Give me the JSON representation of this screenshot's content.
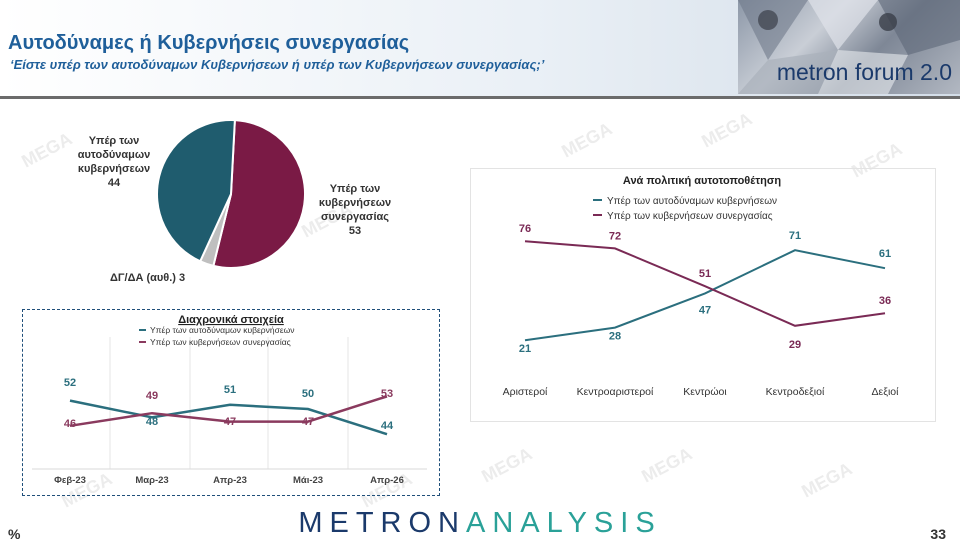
{
  "header": {
    "title": "Αυτοδύναμες ή Κυβερνήσεις συνεργασίας",
    "subtitle": "‘Είστε υπέρ των αυτοδύναμων Κυβερνήσεων ή υπέρ των Κυβερνήσεων συνεργασίας;’",
    "logo_text": "metron forum 2.0"
  },
  "pie": {
    "slices": [
      {
        "label_lines": [
          "Υπέρ των",
          "αυτοδύναμων",
          "κυβερνήσεων"
        ],
        "value": 44,
        "color": "#1f5c6e"
      },
      {
        "label_lines": [
          "Υπέρ των",
          "κυβερνήσεων",
          "συνεργασίας"
        ],
        "value": 53,
        "color": "#7a1a45"
      },
      {
        "label_text": "ΔΓ/ΔΑ (αυθ.) 3",
        "value": 3,
        "color": "#bfbfbf"
      }
    ]
  },
  "chart_data": [
    {
      "type": "pie",
      "categories": [
        "Υπέρ των αυτοδύναμων κυβερνήσεων",
        "Υπέρ των κυβερνήσεων συνεργασίας",
        "ΔΓ/ΔΑ (αυθ.)"
      ],
      "values": [
        44,
        53,
        3
      ]
    },
    {
      "type": "line",
      "title": "Διαχρονικά στοιχεία",
      "categories": [
        "Φεβ-23",
        "Μαρ-23",
        "Απρ-23",
        "Μάι-23",
        "Απρ-26"
      ],
      "series": [
        {
          "name": "Υπέρ των αυτοδύναμων κυβερνήσεων",
          "values": [
            52,
            48,
            51,
            50,
            44
          ],
          "color": "#2b6f7e"
        },
        {
          "name": "Υπέρ των κυβερνήσεων συνεργασίας",
          "values": [
            46,
            49,
            47,
            47,
            53
          ],
          "color": "#8a3a5e"
        }
      ]
    },
    {
      "type": "line",
      "title": "Ανά πολιτική αυτοτοποθέτηση",
      "categories": [
        "Αριστεροί",
        "Κεντροαριστεροί",
        "Κεντρώοι",
        "Κεντροδεξιοί",
        "Δεξιοί"
      ],
      "series": [
        {
          "name": "Υπέρ των αυτοδύναμων κυβερνήσεων",
          "values": [
            21,
            28,
            47,
            71,
            61
          ],
          "color": "#2b6f7e"
        },
        {
          "name": "Υπέρ των κυβερνήσεων συνεργασίας",
          "values": [
            76,
            72,
            51,
            29,
            36
          ],
          "color": "#7a2a55"
        }
      ]
    }
  ],
  "footer": {
    "brand_main": "METRON",
    "brand_accent": "ANALYSIS",
    "percent_sign": "%",
    "page_number": "33"
  }
}
